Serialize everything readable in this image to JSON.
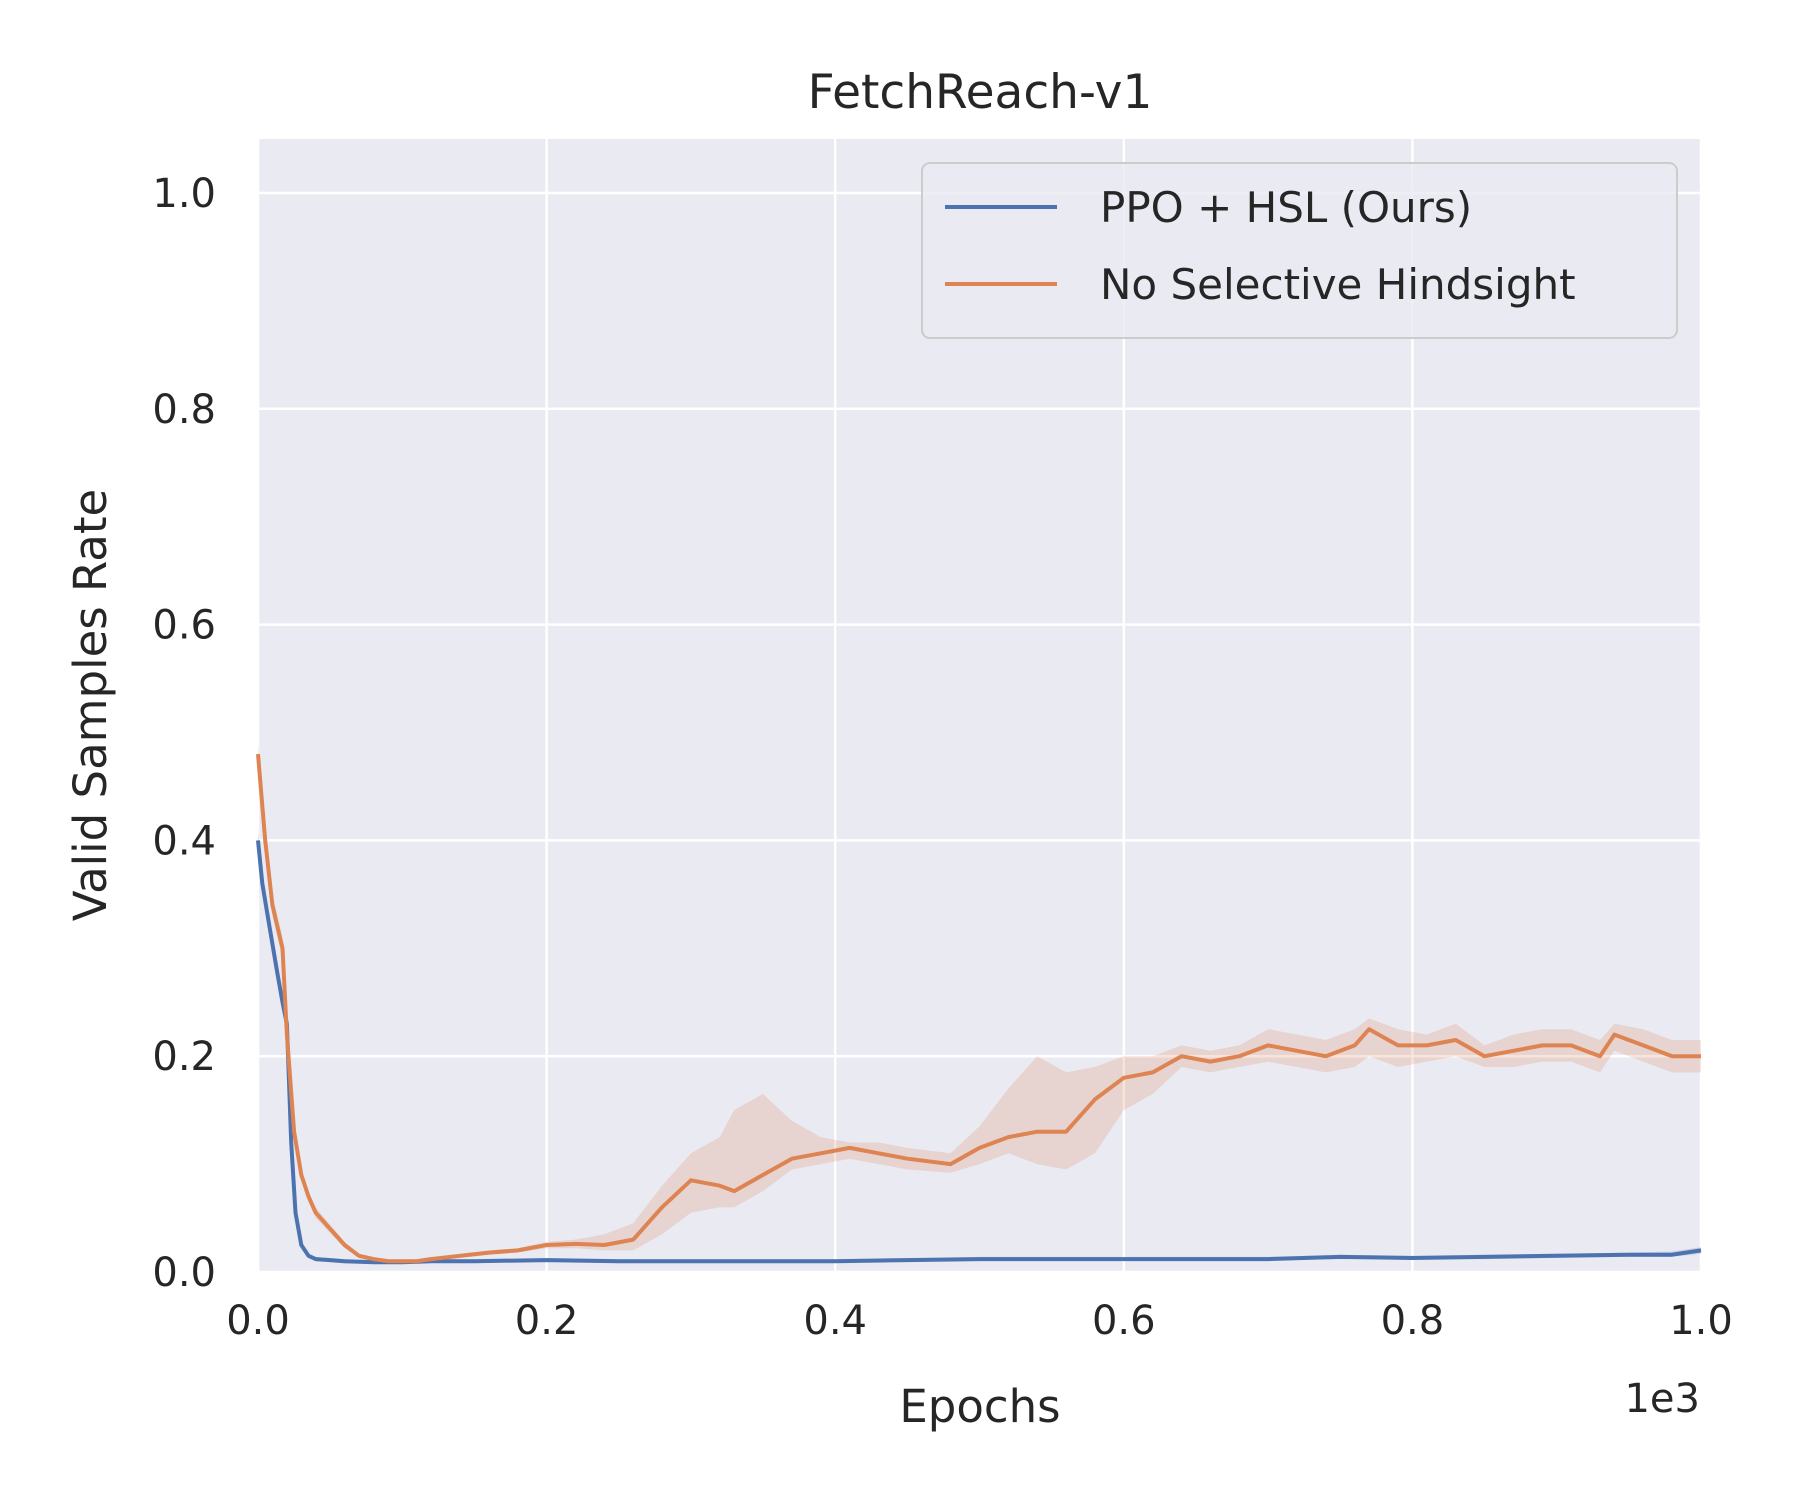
{
  "chart_data": {
    "type": "line",
    "title": "FetchReach-v1",
    "xlabel": "Epochs",
    "ylabel": "Valid Samples Rate",
    "x_offset_label": "1e3",
    "xlim": [
      0,
      1
    ],
    "ylim": [
      0,
      1.05
    ],
    "x_ticks": [
      0,
      0.2,
      0.4,
      0.6,
      0.8,
      1.0
    ],
    "x_tick_labels": [
      "0.0",
      "0.2",
      "0.4",
      "0.6",
      "0.8",
      "1.0"
    ],
    "y_ticks": [
      0,
      0.2,
      0.4,
      0.6,
      0.8,
      1.0
    ],
    "y_tick_labels": [
      "0.0",
      "0.2",
      "0.4",
      "0.6",
      "0.8",
      "1.0"
    ],
    "grid": true,
    "legend_position": "top-right",
    "background_color": "#eaeaf2",
    "series": [
      {
        "name": "PPO + HSL (Ours)",
        "color": "#4c72b0",
        "x": [
          0,
          0.003,
          0.008,
          0.013,
          0.017,
          0.02,
          0.023,
          0.026,
          0.03,
          0.035,
          0.04,
          0.05,
          0.06,
          0.08,
          0.1,
          0.12,
          0.15,
          0.2,
          0.25,
          0.3,
          0.35,
          0.4,
          0.45,
          0.5,
          0.55,
          0.6,
          0.65,
          0.7,
          0.75,
          0.8,
          0.85,
          0.9,
          0.95,
          0.98,
          1.0
        ],
        "y": [
          0.4,
          0.36,
          0.32,
          0.28,
          0.25,
          0.23,
          0.12,
          0.055,
          0.025,
          0.015,
          0.012,
          0.011,
          0.01,
          0.009,
          0.009,
          0.01,
          0.01,
          0.011,
          0.01,
          0.01,
          0.01,
          0.01,
          0.011,
          0.012,
          0.012,
          0.012,
          0.012,
          0.012,
          0.014,
          0.013,
          0.014,
          0.015,
          0.016,
          0.016,
          0.02
        ],
        "band_low": [
          0.39,
          0.35,
          0.31,
          0.27,
          0.24,
          0.22,
          0.11,
          0.05,
          0.022,
          0.013,
          0.01,
          0.009,
          0.008,
          0.008,
          0.008,
          0.009,
          0.009,
          0.01,
          0.009,
          0.009,
          0.009,
          0.009,
          0.01,
          0.011,
          0.011,
          0.011,
          0.011,
          0.011,
          0.012,
          0.012,
          0.012,
          0.013,
          0.014,
          0.014,
          0.017
        ],
        "band_high": [
          0.41,
          0.37,
          0.33,
          0.29,
          0.26,
          0.24,
          0.13,
          0.06,
          0.028,
          0.017,
          0.014,
          0.013,
          0.012,
          0.011,
          0.011,
          0.012,
          0.012,
          0.013,
          0.012,
          0.012,
          0.012,
          0.012,
          0.013,
          0.014,
          0.014,
          0.014,
          0.014,
          0.014,
          0.016,
          0.015,
          0.016,
          0.017,
          0.018,
          0.019,
          0.023
        ]
      },
      {
        "name": "No Selective Hindsight",
        "color": "#dd8452",
        "x": [
          0,
          0.005,
          0.01,
          0.017,
          0.02,
          0.025,
          0.03,
          0.035,
          0.04,
          0.05,
          0.06,
          0.07,
          0.08,
          0.09,
          0.1,
          0.11,
          0.12,
          0.14,
          0.16,
          0.18,
          0.2,
          0.22,
          0.24,
          0.26,
          0.28,
          0.3,
          0.32,
          0.33,
          0.35,
          0.37,
          0.39,
          0.41,
          0.43,
          0.45,
          0.48,
          0.5,
          0.52,
          0.54,
          0.56,
          0.58,
          0.6,
          0.62,
          0.64,
          0.66,
          0.68,
          0.7,
          0.72,
          0.74,
          0.76,
          0.77,
          0.79,
          0.81,
          0.83,
          0.85,
          0.87,
          0.89,
          0.91,
          0.93,
          0.94,
          0.96,
          0.98,
          1.0
        ],
        "y": [
          0.48,
          0.4,
          0.34,
          0.3,
          0.22,
          0.13,
          0.09,
          0.07,
          0.055,
          0.04,
          0.025,
          0.015,
          0.012,
          0.01,
          0.01,
          0.01,
          0.012,
          0.015,
          0.018,
          0.02,
          0.025,
          0.026,
          0.025,
          0.03,
          0.06,
          0.085,
          0.08,
          0.075,
          0.09,
          0.105,
          0.11,
          0.115,
          0.11,
          0.105,
          0.1,
          0.115,
          0.125,
          0.13,
          0.13,
          0.16,
          0.18,
          0.185,
          0.2,
          0.195,
          0.2,
          0.21,
          0.205,
          0.2,
          0.21,
          0.225,
          0.21,
          0.21,
          0.215,
          0.2,
          0.205,
          0.21,
          0.21,
          0.2,
          0.22,
          0.21,
          0.2,
          0.2
        ],
        "band_low": [
          0.47,
          0.39,
          0.33,
          0.29,
          0.21,
          0.12,
          0.085,
          0.065,
          0.05,
          0.036,
          0.022,
          0.013,
          0.01,
          0.008,
          0.008,
          0.008,
          0.01,
          0.013,
          0.016,
          0.018,
          0.022,
          0.022,
          0.02,
          0.02,
          0.035,
          0.055,
          0.06,
          0.06,
          0.075,
          0.095,
          0.1,
          0.105,
          0.1,
          0.095,
          0.092,
          0.1,
          0.11,
          0.1,
          0.095,
          0.11,
          0.15,
          0.165,
          0.19,
          0.185,
          0.19,
          0.195,
          0.19,
          0.185,
          0.19,
          0.2,
          0.19,
          0.195,
          0.2,
          0.19,
          0.19,
          0.195,
          0.195,
          0.185,
          0.205,
          0.195,
          0.185,
          0.185
        ],
        "band_high": [
          0.49,
          0.41,
          0.35,
          0.31,
          0.23,
          0.14,
          0.095,
          0.075,
          0.06,
          0.044,
          0.028,
          0.017,
          0.014,
          0.012,
          0.012,
          0.012,
          0.014,
          0.017,
          0.02,
          0.022,
          0.028,
          0.03,
          0.035,
          0.045,
          0.08,
          0.11,
          0.125,
          0.15,
          0.165,
          0.14,
          0.125,
          0.12,
          0.12,
          0.115,
          0.11,
          0.135,
          0.17,
          0.2,
          0.185,
          0.19,
          0.2,
          0.2,
          0.21,
          0.205,
          0.21,
          0.225,
          0.22,
          0.215,
          0.225,
          0.235,
          0.225,
          0.22,
          0.23,
          0.21,
          0.22,
          0.225,
          0.225,
          0.215,
          0.23,
          0.225,
          0.215,
          0.215
        ]
      }
    ]
  }
}
